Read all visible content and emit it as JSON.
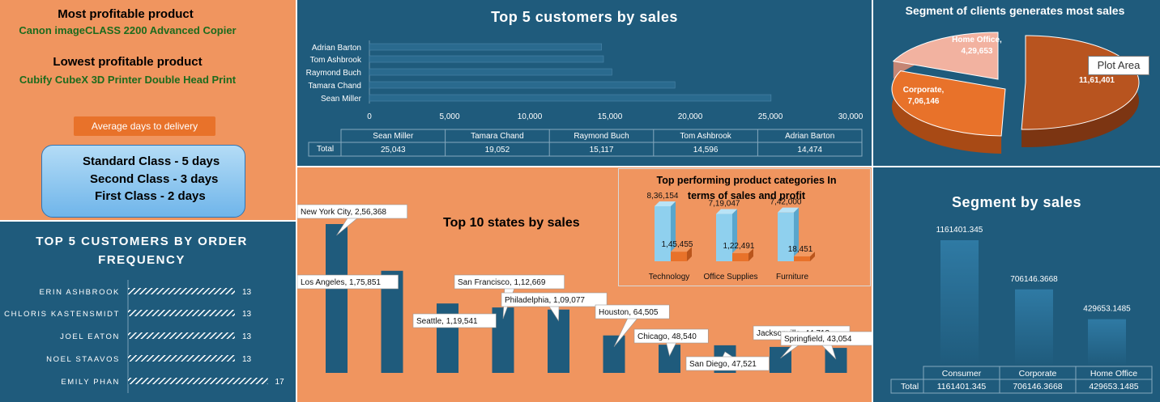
{
  "kpi": {
    "most_label": "Most profitable product",
    "most_value": "Canon imageCLASS 2200 Advanced Copier",
    "least_label": "Lowest profitable product",
    "least_value": "Cubify CubeX 3D Printer Double Head Print",
    "delivery_label": "Average days to delivery",
    "delivery_lines": [
      "Standard Class - 5 days",
      "Second Class - 3 days",
      "First Class - 2 days"
    ]
  },
  "colors": {
    "blue": "#1f5b7c",
    "orange": "#f0955f",
    "bar_blue": "#1f5b7c",
    "accent": "#e8722a",
    "light_blue": "#8fd0ee"
  },
  "chart_data": [
    {
      "id": "top5_sales",
      "type": "bar",
      "orientation": "horizontal",
      "title": "Top 5 customers by sales",
      "categories": [
        "Sean Miller",
        "Tamara Chand",
        "Raymond Buch",
        "Tom Ashbrook",
        "Adrian Barton"
      ],
      "values": [
        25043,
        19052,
        15117,
        14596,
        14474
      ],
      "value_labels": [
        "25,043",
        "19,052",
        "15,117",
        "14,596",
        "14,474"
      ],
      "xlim": [
        0,
        30000
      ],
      "ticks": [
        "0",
        "5,000",
        "10,000",
        "15,000",
        "20,000",
        "25,000",
        "30,000"
      ],
      "table_row_label": "Total"
    },
    {
      "id": "segment_pie",
      "type": "pie",
      "title": "Segment of clients generates most sales",
      "slices": [
        {
          "name": "Consumer",
          "short_label": "Co",
          "value": 1161401,
          "label": "11,61,401",
          "color": "#b8541f"
        },
        {
          "name": "Corporate",
          "value": 706146,
          "label": "7,06,146",
          "color": "#e8722a"
        },
        {
          "name": "Home Office",
          "value": 429653,
          "label": "4,29,653",
          "color": "#f2b2a0"
        }
      ],
      "tooltip": "Plot Area"
    },
    {
      "id": "order_freq",
      "type": "bar",
      "orientation": "horizontal",
      "title": "TOP 5 CUSTOMERS BY ORDER FREQUENCY",
      "categories": [
        "ERIN ASHBROOK",
        "CHLORIS KASTENSMIDT",
        "JOEL EATON",
        "NOEL STAAVOS",
        "EMILY PHAN"
      ],
      "values": [
        13,
        13,
        13,
        13,
        17
      ],
      "value_labels": [
        "13",
        "13",
        "13",
        "13",
        "17"
      ]
    },
    {
      "id": "top10_states",
      "type": "bar",
      "title": "Top 10 states by sales",
      "categories": [
        "New York City",
        "Los Angeles",
        "Seattle",
        "San Francisco",
        "Philadelphia",
        "Houston",
        "Chicago",
        "San Diego",
        "Jacksonville",
        "Springfield"
      ],
      "values": [
        256368,
        175851,
        119541,
        112669,
        109077,
        64505,
        48540,
        47521,
        44713,
        43054
      ],
      "labels": [
        "New York City, 2,56,368",
        "Los Angeles, 1,75,851",
        "Seattle, 1,19,541",
        "San Francisco, 1,12,669",
        "Philadelphia, 1,09,077",
        "Houston, 64,505",
        "Chicago, 48,540",
        "San Diego, 47,521",
        "Jacksonville, 44,713",
        "Springfield, 43,054"
      ]
    },
    {
      "id": "categories",
      "type": "bar",
      "title": "Top performing product categories In terms of sales and profit",
      "categories": [
        "Technology",
        "Office Supplies",
        "Furniture"
      ],
      "series": [
        {
          "values": [
            836154,
            719047,
            742000
          ],
          "labels": [
            "8,36,154",
            "7,19,047",
            "7,42,000"
          ],
          "color": "#8fd0ee"
        },
        {
          "values": [
            145455,
            122491,
            18451
          ],
          "labels": [
            "1,45,455",
            "1,22,491",
            "18,451"
          ],
          "color": "#e8722a"
        }
      ]
    },
    {
      "id": "segment_sales",
      "type": "bar",
      "title": "Segment by sales",
      "categories": [
        "Consumer",
        "Corporate",
        "Home Office"
      ],
      "values": [
        1161401.345,
        706146.3668,
        429653.1485
      ],
      "value_labels": [
        "1161401.345",
        "706146.3668",
        "429653.1485"
      ],
      "table_row_label": "Total"
    }
  ]
}
